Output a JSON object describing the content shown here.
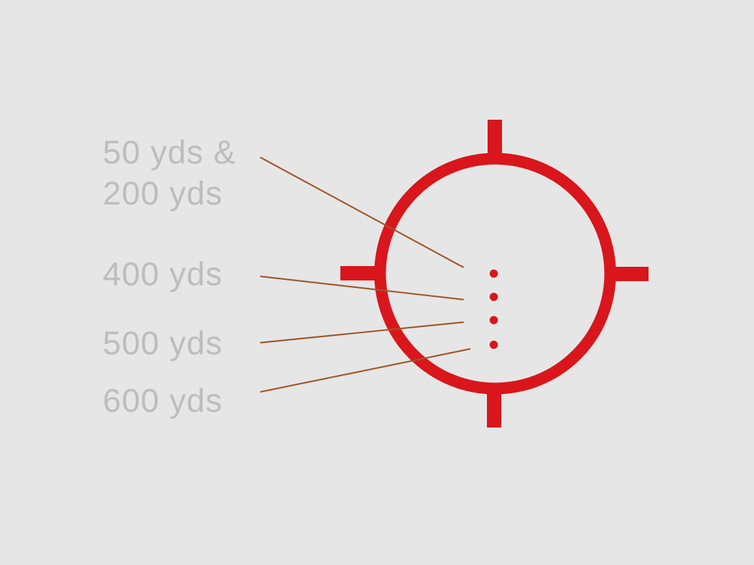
{
  "labels": [
    {
      "line1": "50 yds &",
      "line2": "200 yds"
    },
    {
      "line1": "400 yds"
    },
    {
      "line1": "500 yds"
    },
    {
      "line1": "600 yds"
    }
  ],
  "colors": {
    "background": "#e6e6e6",
    "reticle": "#d9161c",
    "leader": "#a0562a",
    "text": "#bdbdbd"
  }
}
